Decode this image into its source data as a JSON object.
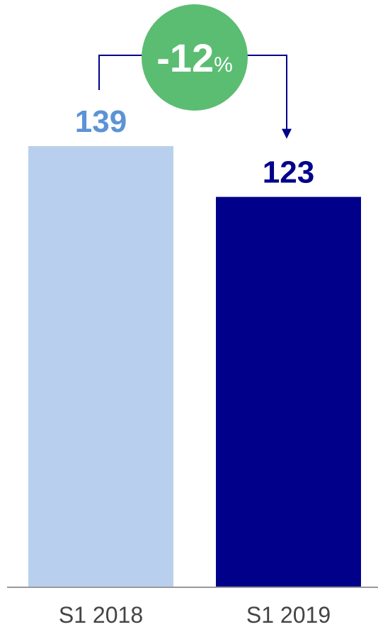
{
  "chart_data": {
    "type": "bar",
    "categories": [
      "S1 2018",
      "S1 2019"
    ],
    "values": [
      139,
      123
    ],
    "value_labels": [
      "139",
      "123"
    ],
    "ylim": [
      0,
      139
    ],
    "grid": false,
    "colors": {
      "bar_2018": "#b8d0ed",
      "bar_2019": "#00008b",
      "label_2018": "#5b93d6",
      "label_2019": "#00008b",
      "connector": "#00008b",
      "badge": "#5bbd72",
      "axis": "#999999"
    },
    "annotation": {
      "change_value": "-12",
      "change_unit": "%"
    }
  }
}
